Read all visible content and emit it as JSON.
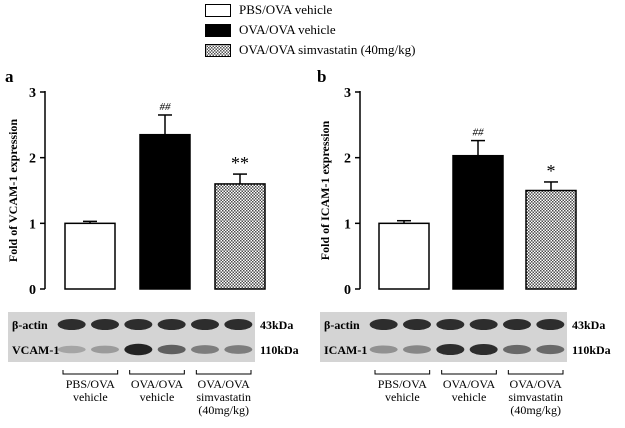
{
  "legend": [
    {
      "label": "PBS/OVA vehicle",
      "style": "white"
    },
    {
      "label": "OVA/OVA vehicle",
      "style": "black"
    },
    {
      "label": "OVA/OVA simvastatin (40mg/kg)",
      "style": "crosshatch"
    }
  ],
  "colors": {
    "bar_fill_white": "#ffffff",
    "bar_fill_black": "#000000",
    "blot_bg": "#d9d9d9",
    "band": "#1a1a1a"
  },
  "chart_data": [
    {
      "panel_letter": "a",
      "type": "bar",
      "ylabel": "Fold of VCAM-1 expression",
      "ylim": [
        0,
        3
      ],
      "yticks": [
        "0",
        "1",
        "2",
        "3"
      ],
      "categories": [
        "PBS/OVA vehicle",
        "OVA/OVA vehicle",
        "OVA/OVA simvastatin (40mg/kg)"
      ],
      "values": [
        1.0,
        2.35,
        1.6
      ],
      "errors": [
        0.03,
        0.3,
        0.15
      ],
      "significance": [
        "",
        "##",
        "**"
      ],
      "blot": {
        "rows": [
          {
            "label": "β-actin",
            "size": "43kDa",
            "intensities": [
              0.85,
              0.85,
              0.85,
              0.85,
              0.85,
              0.85
            ]
          },
          {
            "label": "VCAM-1",
            "size": "110kDa",
            "intensities": [
              0.25,
              0.3,
              0.9,
              0.6,
              0.45,
              0.45
            ]
          }
        ],
        "groups": [
          [
            "PBS/OVA",
            "vehicle"
          ],
          [
            "OVA/OVA",
            "vehicle"
          ],
          [
            "OVA/OVA",
            "simvastatin",
            "(40mg/kg)"
          ]
        ]
      }
    },
    {
      "panel_letter": "b",
      "type": "bar",
      "ylabel": "Fold of ICAM-1 expression",
      "ylim": [
        0,
        3
      ],
      "yticks": [
        "0",
        "1",
        "2",
        "3"
      ],
      "categories": [
        "PBS/OVA vehicle",
        "OVA/OVA vehicle",
        "OVA/OVA simvastatin (40mg/kg)"
      ],
      "values": [
        1.0,
        2.03,
        1.5
      ],
      "errors": [
        0.04,
        0.23,
        0.13
      ],
      "significance": [
        "",
        "##",
        "*"
      ],
      "blot": {
        "rows": [
          {
            "label": "β-actin",
            "size": "43kDa",
            "intensities": [
              0.85,
              0.85,
              0.85,
              0.85,
              0.85,
              0.85
            ]
          },
          {
            "label": "ICAM-1",
            "size": "110kDa",
            "intensities": [
              0.35,
              0.4,
              0.85,
              0.85,
              0.55,
              0.55
            ]
          }
        ],
        "groups": [
          [
            "PBS/OVA",
            "vehicle"
          ],
          [
            "OVA/OVA",
            "vehicle"
          ],
          [
            "OVA/OVA",
            "simvastatin",
            "(40mg/kg)"
          ]
        ]
      }
    }
  ]
}
